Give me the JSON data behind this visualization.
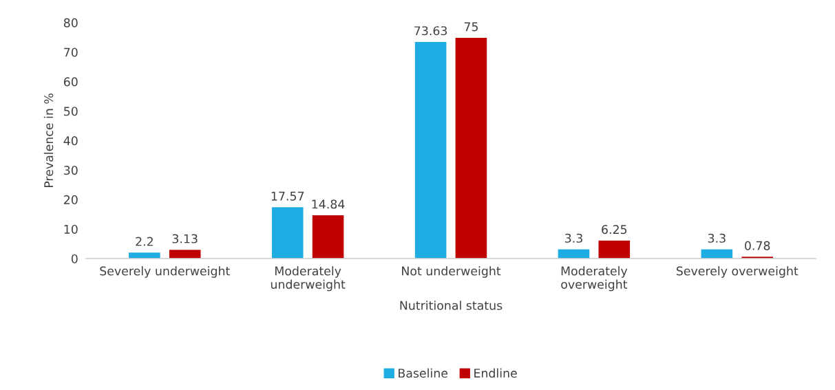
{
  "chart_data": {
    "type": "bar",
    "xlabel": "Nutritional status",
    "ylabel": "Prevalence in %",
    "categories": [
      "Severely underweight",
      "Moderately\nunderweight",
      "Not underweight",
      "Moderately\noverweight",
      "Severely overweight"
    ],
    "series": [
      {
        "name": "Baseline",
        "color": "#1eace2",
        "values": [
          2.2,
          17.57,
          73.63,
          3.3,
          3.3
        ]
      },
      {
        "name": "Endline",
        "color": "#c00000",
        "values": [
          3.13,
          14.84,
          75,
          6.25,
          0.78
        ]
      }
    ],
    "ylim": [
      0,
      80
    ],
    "yticks": [
      0,
      10,
      20,
      30,
      40,
      50,
      60,
      70,
      80
    ],
    "data_labels": true,
    "legend": "bottom",
    "grid": false
  }
}
